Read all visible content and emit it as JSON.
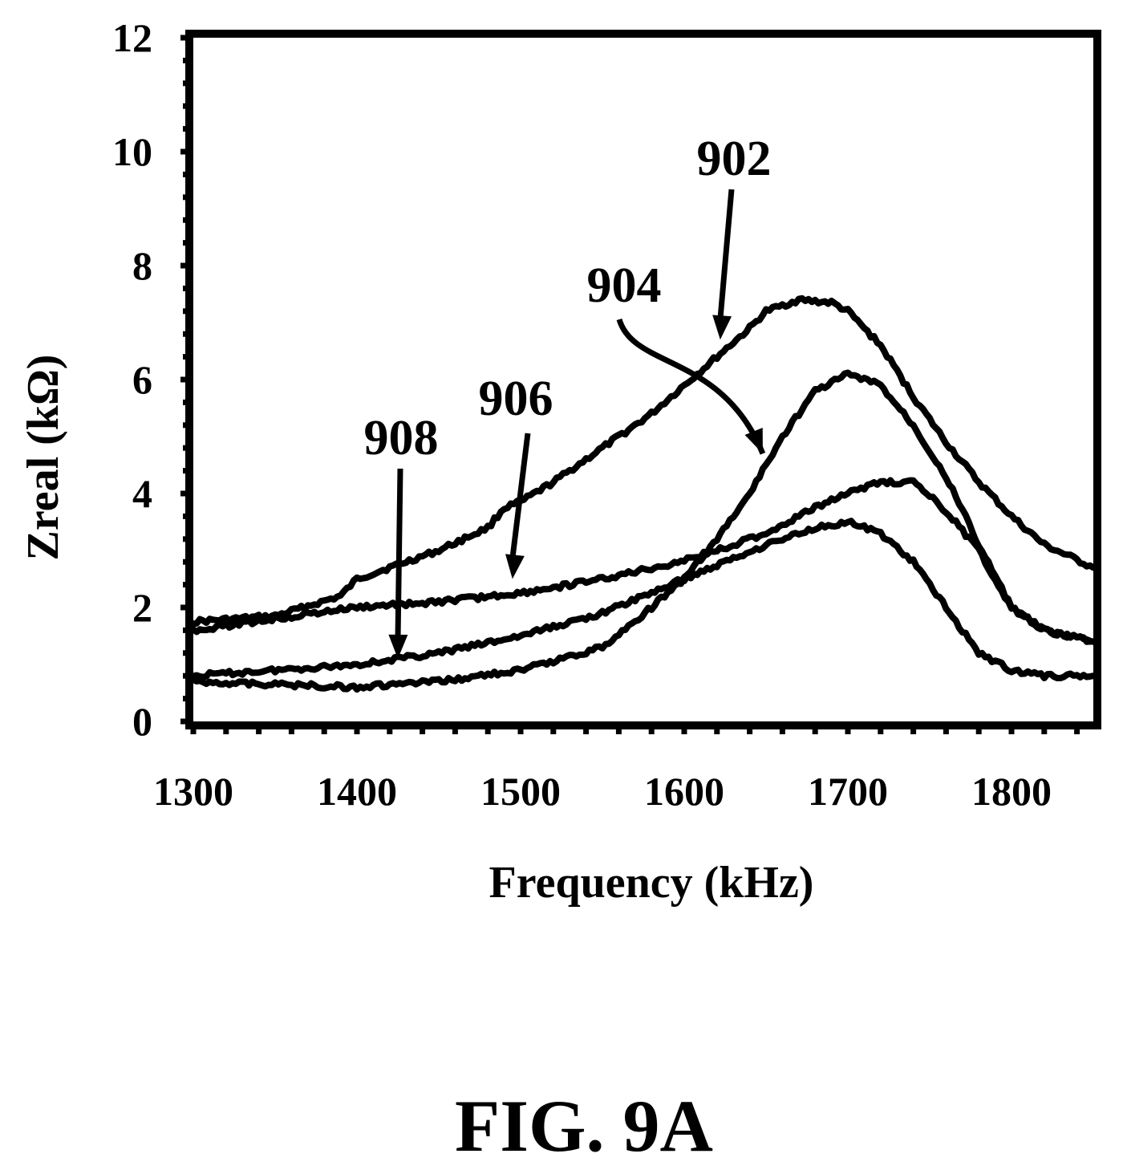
{
  "figure_caption": "FIG. 9A",
  "chart_data": {
    "type": "line",
    "title": "",
    "xlabel": "Frequency (kHz)",
    "ylabel": "Zreal (kΩ)",
    "xlim": [
      1300,
      1850
    ],
    "ylim": [
      0,
      12
    ],
    "xticks": [
      1300,
      1400,
      1500,
      1600,
      1700,
      1800
    ],
    "yticks": [
      0,
      2,
      4,
      6,
      8,
      10,
      12
    ],
    "grid": false,
    "legend": "none",
    "series": [
      {
        "name": "902",
        "x": [
          1300,
          1350,
          1390,
          1400,
          1430,
          1450,
          1480,
          1490,
          1500,
          1520,
          1550,
          1580,
          1600,
          1620,
          1640,
          1650,
          1670,
          1690,
          1700,
          1720,
          1740,
          1760,
          1780,
          1800,
          1820,
          1850
        ],
        "y": [
          1.75,
          1.85,
          2.2,
          2.5,
          2.8,
          3.0,
          3.4,
          3.75,
          3.85,
          4.2,
          4.8,
          5.4,
          5.9,
          6.4,
          6.9,
          7.2,
          7.4,
          7.35,
          7.2,
          6.6,
          5.7,
          4.9,
          4.2,
          3.6,
          3.1,
          2.7
        ]
      },
      {
        "name": "904",
        "x": [
          1300,
          1350,
          1400,
          1450,
          1500,
          1550,
          1580,
          1600,
          1620,
          1640,
          1660,
          1680,
          1700,
          1720,
          1740,
          1760,
          1780,
          1800,
          1820,
          1850
        ],
        "y": [
          0.7,
          0.65,
          0.6,
          0.7,
          0.9,
          1.3,
          2.0,
          2.5,
          3.2,
          4.0,
          5.0,
          5.8,
          6.1,
          5.9,
          5.2,
          4.3,
          3.1,
          2.0,
          1.6,
          1.4
        ]
      },
      {
        "name": "906",
        "x": [
          1300,
          1350,
          1400,
          1450,
          1500,
          1550,
          1590,
          1620,
          1650,
          1670,
          1690,
          1700,
          1720,
          1740,
          1760,
          1780,
          1800,
          1820,
          1850
        ],
        "y": [
          1.6,
          1.8,
          2.0,
          2.1,
          2.25,
          2.5,
          2.75,
          3.0,
          3.3,
          3.6,
          3.9,
          4.0,
          4.2,
          4.2,
          3.7,
          3.0,
          2.0,
          1.6,
          1.4
        ]
      },
      {
        "name": "908",
        "x": [
          1300,
          1350,
          1400,
          1425,
          1450,
          1500,
          1550,
          1600,
          1650,
          1680,
          1700,
          1720,
          1740,
          1760,
          1780,
          1800,
          1820,
          1850
        ],
        "y": [
          0.8,
          0.9,
          1.0,
          1.1,
          1.2,
          1.5,
          1.9,
          2.5,
          3.1,
          3.4,
          3.5,
          3.3,
          2.8,
          2.0,
          1.2,
          0.9,
          0.8,
          0.8
        ]
      }
    ],
    "annotations": [
      {
        "text": "902",
        "x": 1622,
        "y": 6.7
      },
      {
        "text": "904",
        "x": 1648,
        "y": 4.7
      },
      {
        "text": "906",
        "x": 1495,
        "y": 2.5
      },
      {
        "text": "908",
        "x": 1425,
        "y": 1.1
      }
    ]
  }
}
